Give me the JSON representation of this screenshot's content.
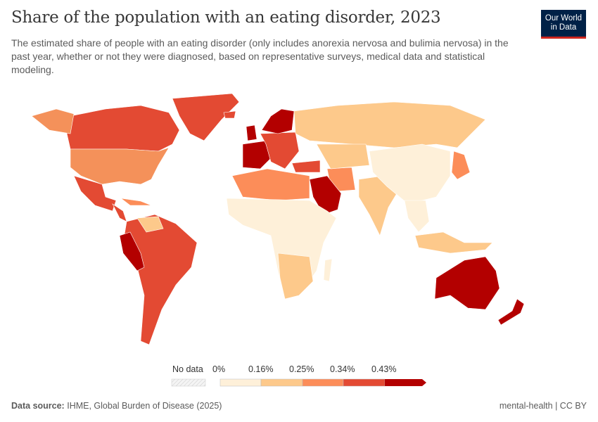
{
  "title": "Share of the population with an eating disorder, 2023",
  "subtitle": "The estimated share of people with an eating disorder (only includes anorexia nervosa and bulimia nervosa) in the past year, whether or not they were diagnosed, based on representative surveys, medical data and statistical modeling.",
  "logo": "Our World in Data",
  "legend": {
    "no_data": "No data",
    "bins": [
      "0%",
      "0.16%",
      "0.25%",
      "0.34%",
      "0.43%"
    ],
    "colors": [
      "#fef0d9",
      "#fdc98b",
      "#fc8d59",
      "#e34a33",
      "#b30000"
    ],
    "no_data_color": "#f0f0f0"
  },
  "footer": {
    "source_label": "Data source:",
    "source": "IHME, Global Burden of Disease (2025)",
    "right": "mental-health | CC BY"
  }
}
